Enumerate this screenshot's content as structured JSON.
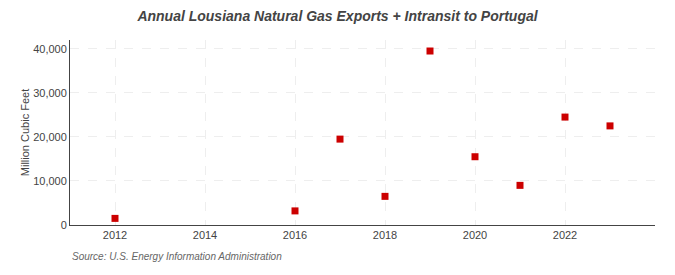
{
  "chart_data": {
    "type": "scatter",
    "title": "Annual Lousiana Natural Gas Exports + Intransit to Portugal",
    "ylabel": "Million Cubic Feet",
    "source": "Source: U.S. Energy Information Administration",
    "x": [
      2012,
      2016,
      2017,
      2018,
      2019,
      2020,
      2021,
      2022,
      2023
    ],
    "values": [
      1500,
      3200,
      19500,
      6500,
      39500,
      15500,
      9000,
      24500,
      22500
    ],
    "color": "#cc0000",
    "marker": "square",
    "xlim": [
      2011.0,
      2024.0
    ],
    "xticks": [
      2012,
      2014,
      2016,
      2018,
      2020,
      2022
    ],
    "ylim": [
      0,
      42000
    ],
    "yticks": [
      0,
      {
        "value": 10000,
        "label": "10,000"
      },
      {
        "value": 20000,
        "label": "20,000"
      },
      {
        "value": 30000,
        "label": "30,000"
      },
      {
        "value": 40000,
        "label": "40,000"
      }
    ],
    "grid": true
  }
}
